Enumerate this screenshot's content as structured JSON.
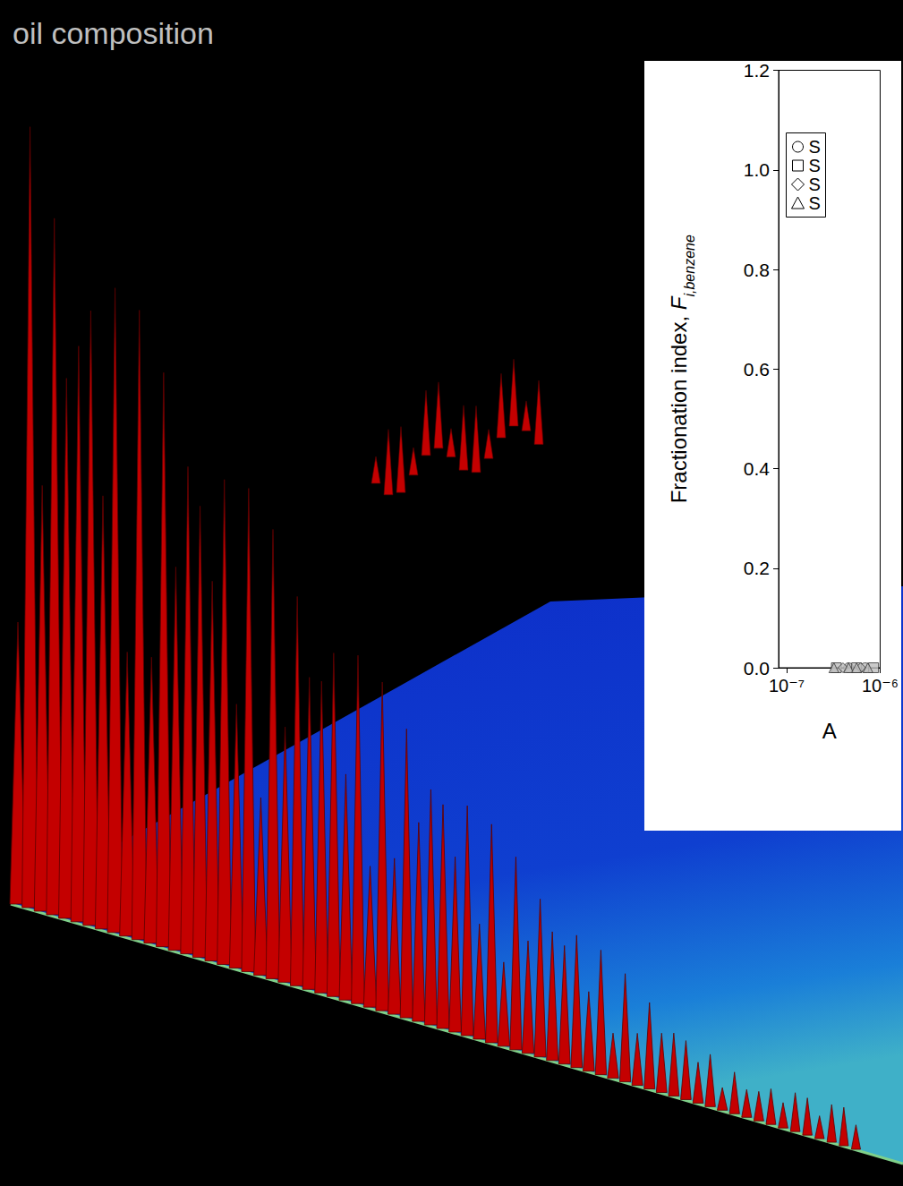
{
  "slide": {
    "text": "oil composition"
  },
  "chart_data": {
    "type": "scatter",
    "ylabel": {
      "text": "Fractionation index, ",
      "symbol": "F",
      "subscript": "i,benzene"
    },
    "xlabel": "A",
    "log": "x",
    "xlim": [
      8.2e-08,
      1e-06
    ],
    "xticks": [
      {
        "value": 1e-07,
        "label": "10⁻⁷"
      },
      {
        "value": 1e-06,
        "label": "10⁻⁶"
      }
    ],
    "ylim": [
      0,
      1.2
    ],
    "yticks": [
      {
        "value": 0,
        "label": "0.0"
      },
      {
        "value": 0.2,
        "label": "0.2"
      },
      {
        "value": 0.4,
        "label": "0.4"
      },
      {
        "value": 0.6,
        "label": "0.6"
      },
      {
        "value": 0.8,
        "label": "0.8"
      },
      {
        "value": 1.0,
        "label": "1.0"
      },
      {
        "value": 1.2,
        "label": "1.2"
      }
    ],
    "grid": false,
    "legend": "upper left",
    "series": [
      {
        "name": "S",
        "marker": "circle",
        "color": "#bdbdbd",
        "x": [
          4.6e-07,
          6.9e-07
        ],
        "values": [
          0,
          0
        ]
      },
      {
        "name": "S",
        "marker": "square",
        "color": "#bdbdbd",
        "x": [
          3.4e-07,
          5.6e-07,
          8.5e-07
        ],
        "values": [
          0,
          0,
          0
        ]
      },
      {
        "name": "S",
        "marker": "diamond",
        "color": "#bdbdbd",
        "x": [
          4e-07,
          6.2e-07
        ],
        "values": [
          0,
          0
        ]
      },
      {
        "name": "S",
        "marker": "triangle",
        "color": "#bdbdbd",
        "x": [
          3.2e-07,
          4.6e-07,
          5.6e-07,
          7.4e-07
        ],
        "values": [
          0,
          0,
          0,
          0
        ]
      }
    ]
  }
}
